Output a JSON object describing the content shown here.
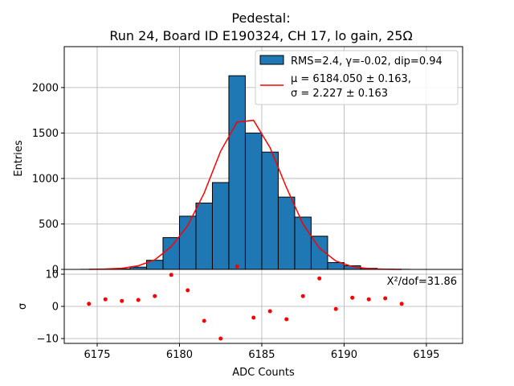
{
  "chart_data": {
    "type": "bar",
    "title_line1": "Pedestal:",
    "title_line2": "Run 24, Board ID E190324, CH 17, lo gain, 25Ω",
    "xlabel": "ADC Counts",
    "ylabel_top": "Entries",
    "ylabel_bottom": "σ",
    "xlim": [
      6173,
      6197.2
    ],
    "ylim_top": [
      0,
      2450
    ],
    "ylim_bottom": [
      -11.5,
      11.5
    ],
    "grid": true,
    "legend_position": "top-right",
    "xticks": [
      6175,
      6180,
      6185,
      6190,
      6195
    ],
    "yticks_top": [
      0,
      500,
      1000,
      1500,
      2000
    ],
    "yticks_bottom": [
      -10,
      0,
      10
    ],
    "histogram": {
      "name": "RMS=2.4, γ=-0.02, dip=0.94",
      "color": "#1f77b4",
      "bin_edges": [
        6174,
        6175,
        6176,
        6177,
        6178,
        6179,
        6180,
        6181,
        6182,
        6183,
        6184,
        6185,
        6186,
        6187,
        6188,
        6189,
        6190,
        6191,
        6192,
        6193,
        6194
      ],
      "counts": [
        1,
        3,
        6,
        25,
        100,
        350,
        585,
        730,
        955,
        2130,
        1500,
        1290,
        795,
        575,
        365,
        75,
        40,
        12,
        3,
        1
      ]
    },
    "fit": {
      "label_line1": "μ = 6184.050 ± 0.163,",
      "label_line2": "σ = 2.227 ± 0.163",
      "color": "#ff0000",
      "x": [
        6174.5,
        6175.5,
        6176.5,
        6177.5,
        6178.5,
        6179.5,
        6180.5,
        6181.5,
        6182.5,
        6183.5,
        6184.5,
        6185.5,
        6186.5,
        6187.5,
        6188.5,
        6189.5,
        6190.5,
        6191.5,
        6192.5,
        6193.5
      ],
      "y": [
        1,
        4,
        12,
        40,
        105,
        250,
        480,
        840,
        1300,
        1620,
        1640,
        1340,
        900,
        500,
        235,
        92,
        30,
        8,
        2,
        0.5
      ]
    },
    "residuals": {
      "color": "#ff0000",
      "x": [
        6174.5,
        6175.5,
        6176.5,
        6177.5,
        6178.5,
        6179.5,
        6180.5,
        6181.5,
        6182.5,
        6183.5,
        6184.5,
        6185.5,
        6186.5,
        6187.5,
        6188.5,
        6189.5,
        6190.5,
        6191.5,
        6192.5,
        6193.5
      ],
      "y": [
        0.8,
        2.2,
        1.7,
        2.0,
        3.2,
        9.8,
        5.0,
        -4.5,
        -10.0,
        12.4,
        -3.5,
        -1.5,
        -4.0,
        3.2,
        8.7,
        -0.8,
        2.7,
        2.2,
        2.5,
        0.8
      ]
    },
    "annotation": "X²/dof=31.86"
  }
}
